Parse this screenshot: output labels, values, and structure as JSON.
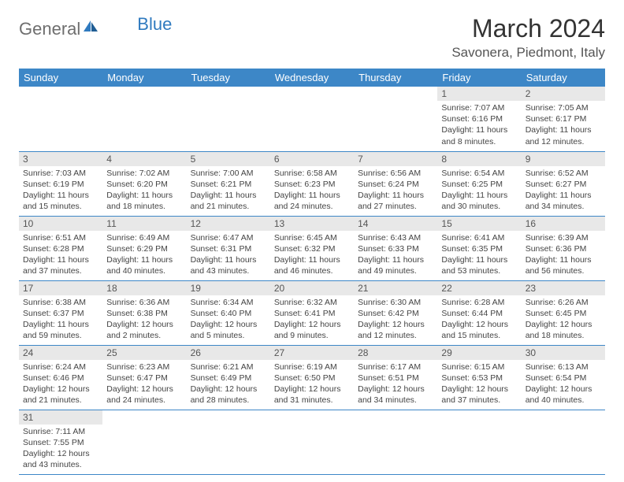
{
  "logo": {
    "text_gray": "General",
    "text_blue": "Blue"
  },
  "title": "March 2024",
  "location": "Savonera, Piedmont, Italy",
  "colors": {
    "header_bg": "#3d87c7",
    "header_text": "#ffffff",
    "daynum_bg": "#e8e8e8",
    "row_border": "#3d87c7",
    "logo_gray": "#6e6e6e",
    "logo_blue": "#2f7abf"
  },
  "weekdays": [
    "Sunday",
    "Monday",
    "Tuesday",
    "Wednesday",
    "Thursday",
    "Friday",
    "Saturday"
  ],
  "weeks": [
    [
      {
        "day": "",
        "sunrise": "",
        "sunset": "",
        "daylight": ""
      },
      {
        "day": "",
        "sunrise": "",
        "sunset": "",
        "daylight": ""
      },
      {
        "day": "",
        "sunrise": "",
        "sunset": "",
        "daylight": ""
      },
      {
        "day": "",
        "sunrise": "",
        "sunset": "",
        "daylight": ""
      },
      {
        "day": "",
        "sunrise": "",
        "sunset": "",
        "daylight": ""
      },
      {
        "day": "1",
        "sunrise": "Sunrise: 7:07 AM",
        "sunset": "Sunset: 6:16 PM",
        "daylight": "Daylight: 11 hours and 8 minutes."
      },
      {
        "day": "2",
        "sunrise": "Sunrise: 7:05 AM",
        "sunset": "Sunset: 6:17 PM",
        "daylight": "Daylight: 11 hours and 12 minutes."
      }
    ],
    [
      {
        "day": "3",
        "sunrise": "Sunrise: 7:03 AM",
        "sunset": "Sunset: 6:19 PM",
        "daylight": "Daylight: 11 hours and 15 minutes."
      },
      {
        "day": "4",
        "sunrise": "Sunrise: 7:02 AM",
        "sunset": "Sunset: 6:20 PM",
        "daylight": "Daylight: 11 hours and 18 minutes."
      },
      {
        "day": "5",
        "sunrise": "Sunrise: 7:00 AM",
        "sunset": "Sunset: 6:21 PM",
        "daylight": "Daylight: 11 hours and 21 minutes."
      },
      {
        "day": "6",
        "sunrise": "Sunrise: 6:58 AM",
        "sunset": "Sunset: 6:23 PM",
        "daylight": "Daylight: 11 hours and 24 minutes."
      },
      {
        "day": "7",
        "sunrise": "Sunrise: 6:56 AM",
        "sunset": "Sunset: 6:24 PM",
        "daylight": "Daylight: 11 hours and 27 minutes."
      },
      {
        "day": "8",
        "sunrise": "Sunrise: 6:54 AM",
        "sunset": "Sunset: 6:25 PM",
        "daylight": "Daylight: 11 hours and 30 minutes."
      },
      {
        "day": "9",
        "sunrise": "Sunrise: 6:52 AM",
        "sunset": "Sunset: 6:27 PM",
        "daylight": "Daylight: 11 hours and 34 minutes."
      }
    ],
    [
      {
        "day": "10",
        "sunrise": "Sunrise: 6:51 AM",
        "sunset": "Sunset: 6:28 PM",
        "daylight": "Daylight: 11 hours and 37 minutes."
      },
      {
        "day": "11",
        "sunrise": "Sunrise: 6:49 AM",
        "sunset": "Sunset: 6:29 PM",
        "daylight": "Daylight: 11 hours and 40 minutes."
      },
      {
        "day": "12",
        "sunrise": "Sunrise: 6:47 AM",
        "sunset": "Sunset: 6:31 PM",
        "daylight": "Daylight: 11 hours and 43 minutes."
      },
      {
        "day": "13",
        "sunrise": "Sunrise: 6:45 AM",
        "sunset": "Sunset: 6:32 PM",
        "daylight": "Daylight: 11 hours and 46 minutes."
      },
      {
        "day": "14",
        "sunrise": "Sunrise: 6:43 AM",
        "sunset": "Sunset: 6:33 PM",
        "daylight": "Daylight: 11 hours and 49 minutes."
      },
      {
        "day": "15",
        "sunrise": "Sunrise: 6:41 AM",
        "sunset": "Sunset: 6:35 PM",
        "daylight": "Daylight: 11 hours and 53 minutes."
      },
      {
        "day": "16",
        "sunrise": "Sunrise: 6:39 AM",
        "sunset": "Sunset: 6:36 PM",
        "daylight": "Daylight: 11 hours and 56 minutes."
      }
    ],
    [
      {
        "day": "17",
        "sunrise": "Sunrise: 6:38 AM",
        "sunset": "Sunset: 6:37 PM",
        "daylight": "Daylight: 11 hours and 59 minutes."
      },
      {
        "day": "18",
        "sunrise": "Sunrise: 6:36 AM",
        "sunset": "Sunset: 6:38 PM",
        "daylight": "Daylight: 12 hours and 2 minutes."
      },
      {
        "day": "19",
        "sunrise": "Sunrise: 6:34 AM",
        "sunset": "Sunset: 6:40 PM",
        "daylight": "Daylight: 12 hours and 5 minutes."
      },
      {
        "day": "20",
        "sunrise": "Sunrise: 6:32 AM",
        "sunset": "Sunset: 6:41 PM",
        "daylight": "Daylight: 12 hours and 9 minutes."
      },
      {
        "day": "21",
        "sunrise": "Sunrise: 6:30 AM",
        "sunset": "Sunset: 6:42 PM",
        "daylight": "Daylight: 12 hours and 12 minutes."
      },
      {
        "day": "22",
        "sunrise": "Sunrise: 6:28 AM",
        "sunset": "Sunset: 6:44 PM",
        "daylight": "Daylight: 12 hours and 15 minutes."
      },
      {
        "day": "23",
        "sunrise": "Sunrise: 6:26 AM",
        "sunset": "Sunset: 6:45 PM",
        "daylight": "Daylight: 12 hours and 18 minutes."
      }
    ],
    [
      {
        "day": "24",
        "sunrise": "Sunrise: 6:24 AM",
        "sunset": "Sunset: 6:46 PM",
        "daylight": "Daylight: 12 hours and 21 minutes."
      },
      {
        "day": "25",
        "sunrise": "Sunrise: 6:23 AM",
        "sunset": "Sunset: 6:47 PM",
        "daylight": "Daylight: 12 hours and 24 minutes."
      },
      {
        "day": "26",
        "sunrise": "Sunrise: 6:21 AM",
        "sunset": "Sunset: 6:49 PM",
        "daylight": "Daylight: 12 hours and 28 minutes."
      },
      {
        "day": "27",
        "sunrise": "Sunrise: 6:19 AM",
        "sunset": "Sunset: 6:50 PM",
        "daylight": "Daylight: 12 hours and 31 minutes."
      },
      {
        "day": "28",
        "sunrise": "Sunrise: 6:17 AM",
        "sunset": "Sunset: 6:51 PM",
        "daylight": "Daylight: 12 hours and 34 minutes."
      },
      {
        "day": "29",
        "sunrise": "Sunrise: 6:15 AM",
        "sunset": "Sunset: 6:53 PM",
        "daylight": "Daylight: 12 hours and 37 minutes."
      },
      {
        "day": "30",
        "sunrise": "Sunrise: 6:13 AM",
        "sunset": "Sunset: 6:54 PM",
        "daylight": "Daylight: 12 hours and 40 minutes."
      }
    ],
    [
      {
        "day": "31",
        "sunrise": "Sunrise: 7:11 AM",
        "sunset": "Sunset: 7:55 PM",
        "daylight": "Daylight: 12 hours and 43 minutes."
      },
      {
        "day": "",
        "sunrise": "",
        "sunset": "",
        "daylight": ""
      },
      {
        "day": "",
        "sunrise": "",
        "sunset": "",
        "daylight": ""
      },
      {
        "day": "",
        "sunrise": "",
        "sunset": "",
        "daylight": ""
      },
      {
        "day": "",
        "sunrise": "",
        "sunset": "",
        "daylight": ""
      },
      {
        "day": "",
        "sunrise": "",
        "sunset": "",
        "daylight": ""
      },
      {
        "day": "",
        "sunrise": "",
        "sunset": "",
        "daylight": ""
      }
    ]
  ]
}
